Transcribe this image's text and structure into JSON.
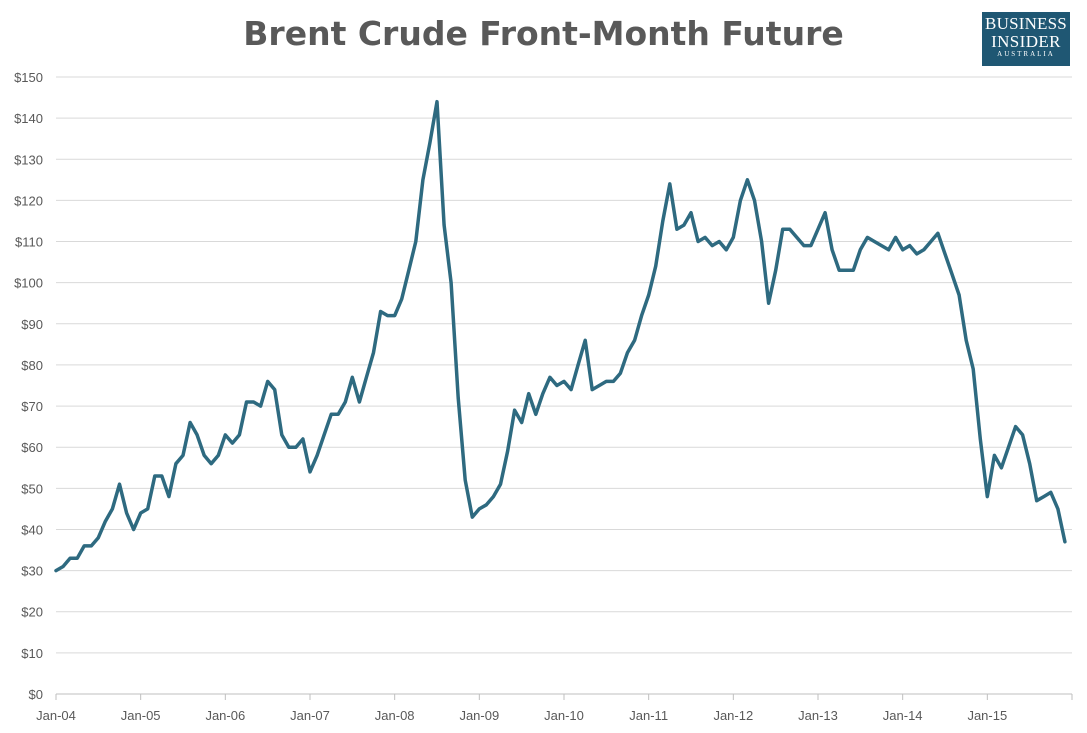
{
  "chart_data": {
    "type": "line",
    "title": "Brent Crude Front-Month Future",
    "xlabel": "",
    "ylabel": "",
    "ylim": [
      0,
      150
    ],
    "ytick_labels": [
      "$0",
      "$10",
      "$20",
      "$30",
      "$40",
      "$50",
      "$60",
      "$70",
      "$80",
      "$90",
      "$100",
      "$110",
      "$120",
      "$130",
      "$140",
      "$150"
    ],
    "xtick_labels": [
      "Jan-04",
      "Jan-05",
      "Jan-06",
      "Jan-07",
      "Jan-08",
      "Jan-09",
      "Jan-10",
      "Jan-11",
      "Jan-12",
      "Jan-13",
      "Jan-14",
      "Jan-15"
    ],
    "xlim": [
      "2004-01",
      "2016-01"
    ],
    "grid": "horizontal",
    "line_color": "#2e6a80",
    "series": [
      {
        "values": [
          [
            "2004-01",
            30
          ],
          [
            "2004-02",
            31
          ],
          [
            "2004-03",
            33
          ],
          [
            "2004-04",
            33
          ],
          [
            "2004-05",
            36
          ],
          [
            "2004-06",
            36
          ],
          [
            "2004-07",
            38
          ],
          [
            "2004-08",
            42
          ],
          [
            "2004-09",
            45
          ],
          [
            "2004-10",
            51
          ],
          [
            "2004-11",
            44
          ],
          [
            "2004-12",
            40
          ],
          [
            "2005-01",
            44
          ],
          [
            "2005-02",
            45
          ],
          [
            "2005-03",
            53
          ],
          [
            "2005-04",
            53
          ],
          [
            "2005-05",
            48
          ],
          [
            "2005-06",
            56
          ],
          [
            "2005-07",
            58
          ],
          [
            "2005-08",
            66
          ],
          [
            "2005-09",
            63
          ],
          [
            "2005-10",
            58
          ],
          [
            "2005-11",
            56
          ],
          [
            "2005-12",
            58
          ],
          [
            "2006-01",
            63
          ],
          [
            "2006-02",
            61
          ],
          [
            "2006-03",
            63
          ],
          [
            "2006-04",
            71
          ],
          [
            "2006-05",
            71
          ],
          [
            "2006-06",
            70
          ],
          [
            "2006-07",
            76
          ],
          [
            "2006-08",
            74
          ],
          [
            "2006-09",
            63
          ],
          [
            "2006-10",
            60
          ],
          [
            "2006-11",
            60
          ],
          [
            "2006-12",
            62
          ],
          [
            "2007-01",
            54
          ],
          [
            "2007-02",
            58
          ],
          [
            "2007-03",
            63
          ],
          [
            "2007-04",
            68
          ],
          [
            "2007-05",
            68
          ],
          [
            "2007-06",
            71
          ],
          [
            "2007-07",
            77
          ],
          [
            "2007-08",
            71
          ],
          [
            "2007-09",
            77
          ],
          [
            "2007-10",
            83
          ],
          [
            "2007-11",
            93
          ],
          [
            "2007-12",
            92
          ],
          [
            "2008-01",
            92
          ],
          [
            "2008-02",
            96
          ],
          [
            "2008-03",
            103
          ],
          [
            "2008-04",
            110
          ],
          [
            "2008-05",
            125
          ],
          [
            "2008-06",
            134
          ],
          [
            "2008-07",
            144
          ],
          [
            "2008-08",
            114
          ],
          [
            "2008-09",
            100
          ],
          [
            "2008-10",
            72
          ],
          [
            "2008-11",
            52
          ],
          [
            "2008-12",
            43
          ],
          [
            "2009-01",
            45
          ],
          [
            "2009-02",
            46
          ],
          [
            "2009-03",
            48
          ],
          [
            "2009-04",
            51
          ],
          [
            "2009-05",
            59
          ],
          [
            "2009-06",
            69
          ],
          [
            "2009-07",
            66
          ],
          [
            "2009-08",
            73
          ],
          [
            "2009-09",
            68
          ],
          [
            "2009-10",
            73
          ],
          [
            "2009-11",
            77
          ],
          [
            "2009-12",
            75
          ],
          [
            "2010-01",
            76
          ],
          [
            "2010-02",
            74
          ],
          [
            "2010-03",
            80
          ],
          [
            "2010-04",
            86
          ],
          [
            "2010-05",
            74
          ],
          [
            "2010-06",
            75
          ],
          [
            "2010-07",
            76
          ],
          [
            "2010-08",
            76
          ],
          [
            "2010-09",
            78
          ],
          [
            "2010-10",
            83
          ],
          [
            "2010-11",
            86
          ],
          [
            "2010-12",
            92
          ],
          [
            "2011-01",
            97
          ],
          [
            "2011-02",
            104
          ],
          [
            "2011-03",
            115
          ],
          [
            "2011-04",
            124
          ],
          [
            "2011-05",
            113
          ],
          [
            "2011-06",
            114
          ],
          [
            "2011-07",
            117
          ],
          [
            "2011-08",
            110
          ],
          [
            "2011-09",
            111
          ],
          [
            "2011-10",
            109
          ],
          [
            "2011-11",
            110
          ],
          [
            "2011-12",
            108
          ],
          [
            "2012-01",
            111
          ],
          [
            "2012-02",
            120
          ],
          [
            "2012-03",
            125
          ],
          [
            "2012-04",
            120
          ],
          [
            "2012-05",
            110
          ],
          [
            "2012-06",
            95
          ],
          [
            "2012-07",
            103
          ],
          [
            "2012-08",
            113
          ],
          [
            "2012-09",
            113
          ],
          [
            "2012-10",
            111
          ],
          [
            "2012-11",
            109
          ],
          [
            "2012-12",
            109
          ],
          [
            "2013-01",
            113
          ],
          [
            "2013-02",
            117
          ],
          [
            "2013-03",
            108
          ],
          [
            "2013-04",
            103
          ],
          [
            "2013-05",
            103
          ],
          [
            "2013-06",
            103
          ],
          [
            "2013-07",
            108
          ],
          [
            "2013-08",
            111
          ],
          [
            "2013-09",
            110
          ],
          [
            "2013-10",
            109
          ],
          [
            "2013-11",
            108
          ],
          [
            "2013-12",
            111
          ],
          [
            "2014-01",
            108
          ],
          [
            "2014-02",
            109
          ],
          [
            "2014-03",
            107
          ],
          [
            "2014-04",
            108
          ],
          [
            "2014-05",
            110
          ],
          [
            "2014-06",
            112
          ],
          [
            "2014-07",
            107
          ],
          [
            "2014-08",
            102
          ],
          [
            "2014-09",
            97
          ],
          [
            "2014-10",
            86
          ],
          [
            "2014-11",
            79
          ],
          [
            "2014-12",
            62
          ],
          [
            "2015-01",
            48
          ],
          [
            "2015-02",
            58
          ],
          [
            "2015-03",
            55
          ],
          [
            "2015-04",
            60
          ],
          [
            "2015-05",
            65
          ],
          [
            "2015-06",
            63
          ],
          [
            "2015-07",
            56
          ],
          [
            "2015-08",
            47
          ],
          [
            "2015-09",
            48
          ],
          [
            "2015-10",
            49
          ],
          [
            "2015-11",
            45
          ],
          [
            "2015-12",
            37
          ]
        ]
      }
    ]
  },
  "logo": {
    "line1": "BUSINESS",
    "line2": "INSIDER",
    "line3": "AUSTRALIA"
  }
}
